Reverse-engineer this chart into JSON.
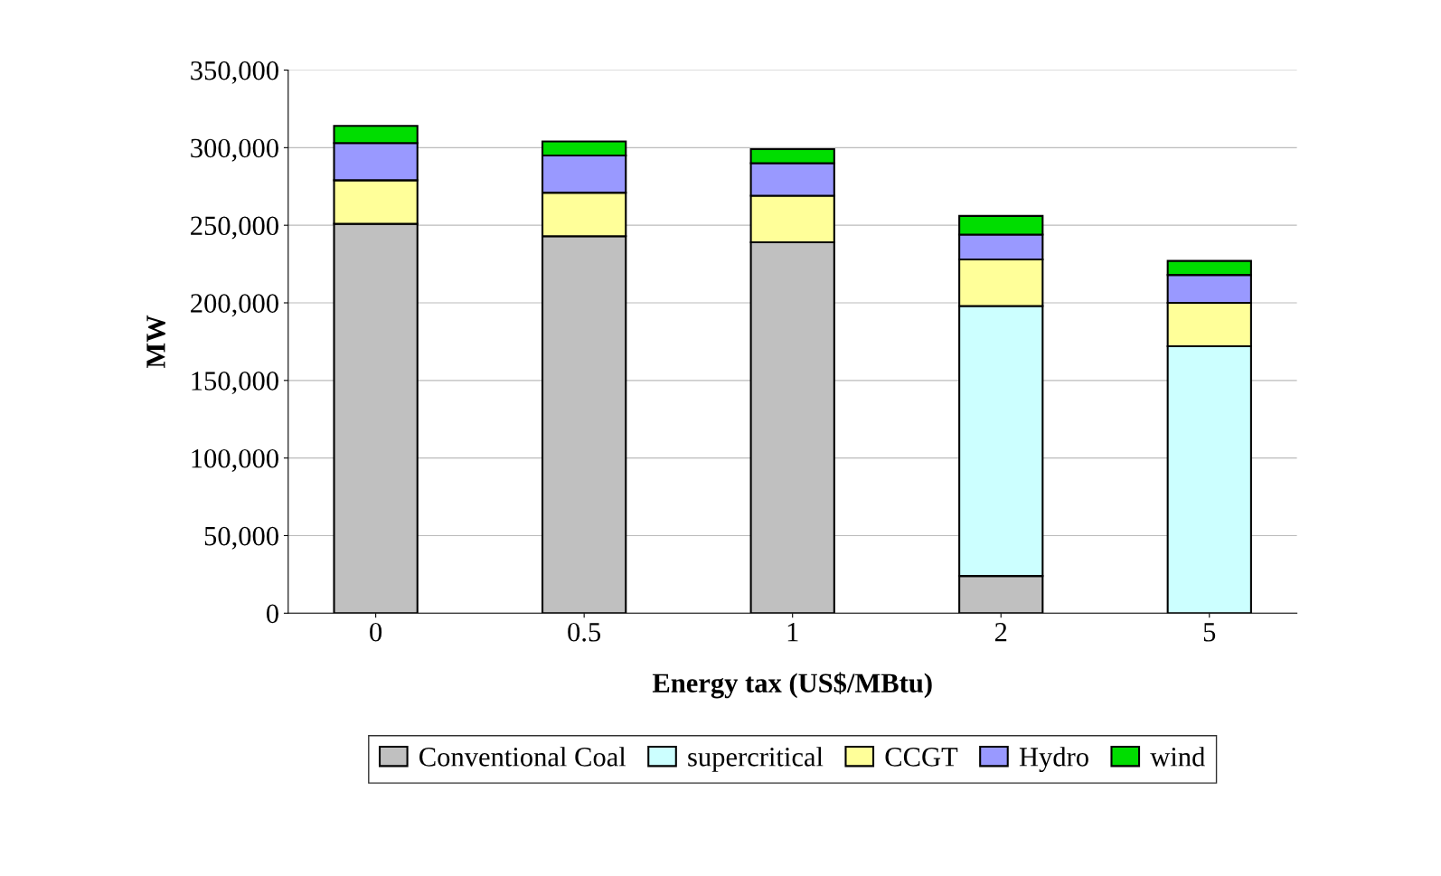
{
  "chart_data": {
    "type": "bar",
    "stacked": true,
    "xlabel": "Energy tax (US$/MBtu)",
    "ylabel": "MW",
    "categories": [
      "0",
      "0.5",
      "1",
      "2",
      "5"
    ],
    "series": [
      {
        "name": "Conventional Coal",
        "color": "#c0c0c0",
        "values": [
          251000,
          243000,
          239000,
          24000,
          0
        ]
      },
      {
        "name": "supercritical",
        "color": "#ccffff",
        "values": [
          0,
          0,
          0,
          174000,
          172000
        ]
      },
      {
        "name": "CCGT",
        "color": "#ffff99",
        "values": [
          28000,
          28000,
          30000,
          30000,
          28000
        ]
      },
      {
        "name": "Hydro",
        "color": "#9999ff",
        "values": [
          24000,
          24000,
          21000,
          16000,
          18000
        ]
      },
      {
        "name": "wind",
        "color": "#00dd00",
        "values": [
          11000,
          9000,
          9000,
          12000,
          9000
        ]
      }
    ],
    "ylim": [
      0,
      350000
    ],
    "yticks": [
      {
        "value": 0,
        "label": "0"
      },
      {
        "value": 50000,
        "label": "50,000"
      },
      {
        "value": 100000,
        "label": "100,000"
      },
      {
        "value": 150000,
        "label": "150,000"
      },
      {
        "value": 200000,
        "label": "200,000"
      },
      {
        "value": 250000,
        "label": "250,000"
      },
      {
        "value": 300000,
        "label": "300,000"
      },
      {
        "value": 350000,
        "label": "350,000"
      }
    ],
    "grid": "y",
    "legend": "bottom"
  }
}
